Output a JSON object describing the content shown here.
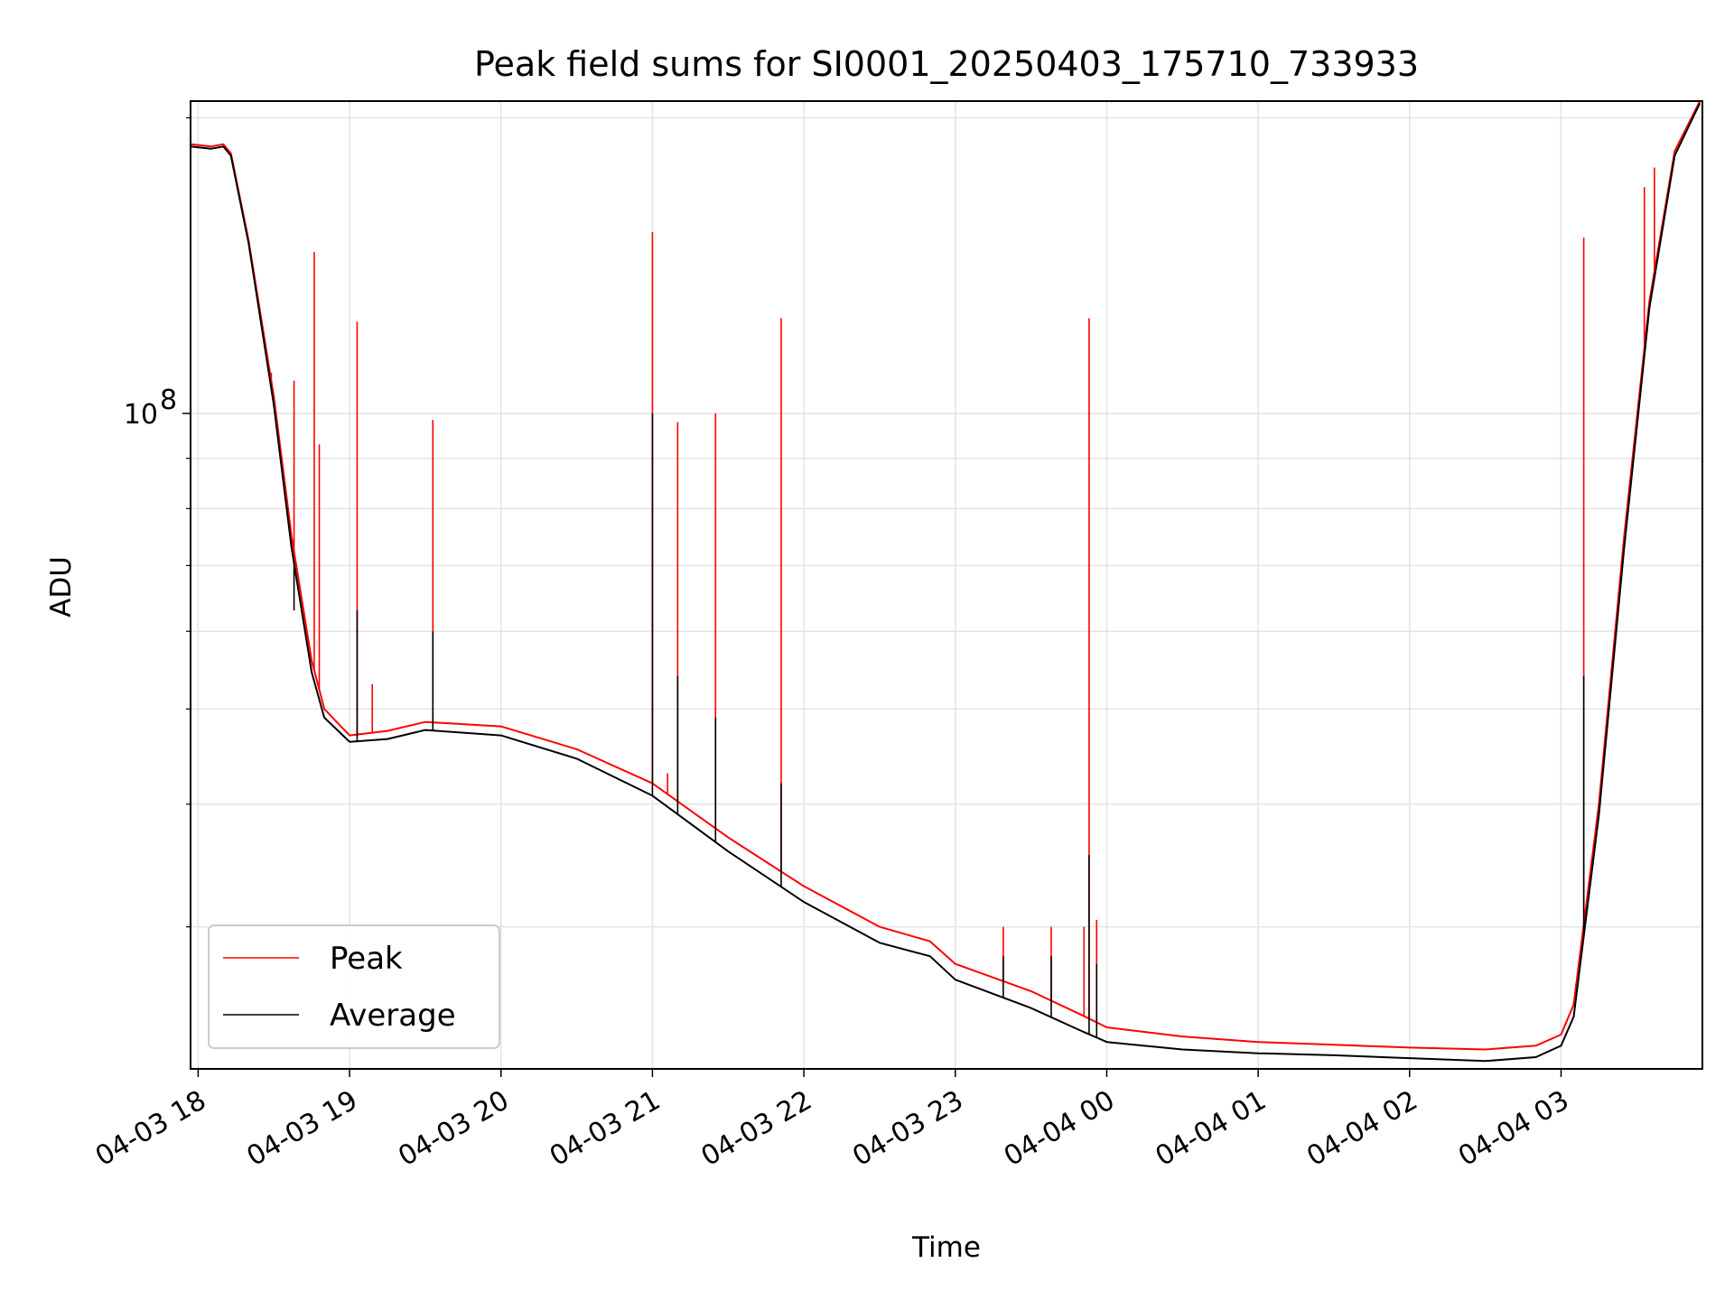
{
  "chart_data": {
    "type": "line",
    "title": "Peak field sums for SI0001_20250403_175710_733933",
    "xlabel": "Time",
    "ylabel": "ADU",
    "y_scale": "log",
    "ylim": [
      21500000,
      208000000
    ],
    "xlim": [
      "2025-04-03 17:57",
      "2025-04-04 03:56"
    ],
    "x_ticks": [
      {
        "t": "2025-04-03 18:00",
        "label": "04-03 18"
      },
      {
        "t": "2025-04-03 19:00",
        "label": "04-03 19"
      },
      {
        "t": "2025-04-03 20:00",
        "label": "04-03 20"
      },
      {
        "t": "2025-04-03 21:00",
        "label": "04-03 21"
      },
      {
        "t": "2025-04-03 22:00",
        "label": "04-03 22"
      },
      {
        "t": "2025-04-03 23:00",
        "label": "04-03 23"
      },
      {
        "t": "2025-04-04 00:00",
        "label": "04-04 00"
      },
      {
        "t": "2025-04-04 01:00",
        "label": "04-04 01"
      },
      {
        "t": "2025-04-04 02:00",
        "label": "04-04 02"
      },
      {
        "t": "2025-04-04 03:00",
        "label": "04-04 03"
      }
    ],
    "y_ticks": [
      {
        "value": 100000000,
        "label": "10",
        "exponent": "8"
      }
    ],
    "y_minor_ticks": [
      30000000,
      40000000,
      50000000,
      60000000,
      70000000,
      80000000,
      90000000,
      200000000
    ],
    "grid": true,
    "legend_position": "lower-left",
    "series": [
      {
        "name": "Peak",
        "color": "#ff0000",
        "x": [
          "2025-04-03 17:57",
          "2025-04-03 18:05",
          "2025-04-03 18:10",
          "2025-04-03 18:13",
          "2025-04-03 18:20",
          "2025-04-03 18:30",
          "2025-04-03 18:37",
          "2025-04-03 18:45",
          "2025-04-03 18:50",
          "2025-04-03 19:00",
          "2025-04-03 19:15",
          "2025-04-03 19:30",
          "2025-04-03 20:00",
          "2025-04-03 20:30",
          "2025-04-03 21:00",
          "2025-04-03 21:30",
          "2025-04-03 22:00",
          "2025-04-03 22:30",
          "2025-04-03 22:50",
          "2025-04-03 23:00",
          "2025-04-03 23:30",
          "2025-04-03 23:50",
          "2025-04-04 00:00",
          "2025-04-04 00:30",
          "2025-04-04 01:00",
          "2025-04-04 01:30",
          "2025-04-04 02:00",
          "2025-04-04 02:30",
          "2025-04-04 02:50",
          "2025-04-04 03:00",
          "2025-04-04 03:05",
          "2025-04-04 03:15",
          "2025-04-04 03:25",
          "2025-04-04 03:35",
          "2025-04-04 03:45",
          "2025-04-04 03:55"
        ],
        "y": [
          188000000,
          187000000,
          188000000,
          184000000,
          150000000,
          104000000,
          75000000,
          56000000,
          50000000,
          47000000,
          47500000,
          48500000,
          48000000,
          45500000,
          42000000,
          37000000,
          33000000,
          30000000,
          29000000,
          27500000,
          25800000,
          24400000,
          23700000,
          23200000,
          22900000,
          22750000,
          22600000,
          22500000,
          22700000,
          23300000,
          25000000,
          40000000,
          75000000,
          130000000,
          185000000,
          208000000
        ],
        "spikes": [
          {
            "t": "2025-04-03 18:29",
            "peak": 110000000
          },
          {
            "t": "2025-04-03 18:38",
            "peak": 108000000
          },
          {
            "t": "2025-04-03 18:46",
            "peak": 146000000
          },
          {
            "t": "2025-04-03 18:48",
            "peak": 93000000
          },
          {
            "t": "2025-04-03 19:03",
            "peak": 124000000
          },
          {
            "t": "2025-04-03 19:09",
            "peak": 53000000
          },
          {
            "t": "2025-04-03 19:33",
            "peak": 98500000
          },
          {
            "t": "2025-04-03 21:00",
            "peak": 153000000
          },
          {
            "t": "2025-04-03 21:06",
            "peak": 43000000
          },
          {
            "t": "2025-04-03 21:10",
            "peak": 98000000
          },
          {
            "t": "2025-04-03 21:25",
            "peak": 100000000
          },
          {
            "t": "2025-04-03 21:51",
            "peak": 125000000
          },
          {
            "t": "2025-04-03 23:19",
            "peak": 30000000
          },
          {
            "t": "2025-04-03 23:38",
            "peak": 30000000
          },
          {
            "t": "2025-04-03 23:51",
            "peak": 30000000
          },
          {
            "t": "2025-04-03 23:53",
            "peak": 125000000
          },
          {
            "t": "2025-04-03 23:56",
            "peak": 30500000
          },
          {
            "t": "2025-04-04 03:09",
            "peak": 151000000
          },
          {
            "t": "2025-04-04 03:33",
            "peak": 170000000
          },
          {
            "t": "2025-04-04 03:37",
            "peak": 178000000
          }
        ]
      },
      {
        "name": "Average",
        "color": "#000000",
        "x": [
          "2025-04-03 17:57",
          "2025-04-03 18:05",
          "2025-04-03 18:10",
          "2025-04-03 18:13",
          "2025-04-03 18:20",
          "2025-04-03 18:30",
          "2025-04-03 18:37",
          "2025-04-03 18:45",
          "2025-04-03 18:50",
          "2025-04-03 19:00",
          "2025-04-03 19:15",
          "2025-04-03 19:30",
          "2025-04-03 20:00",
          "2025-04-03 20:30",
          "2025-04-03 21:00",
          "2025-04-03 21:30",
          "2025-04-03 22:00",
          "2025-04-03 22:30",
          "2025-04-03 22:50",
          "2025-04-03 23:00",
          "2025-04-03 23:30",
          "2025-04-03 23:50",
          "2025-04-04 00:00",
          "2025-04-04 00:30",
          "2025-04-04 01:00",
          "2025-04-04 01:30",
          "2025-04-04 02:00",
          "2025-04-04 02:30",
          "2025-04-04 02:50",
          "2025-04-04 03:00",
          "2025-04-04 03:05",
          "2025-04-04 03:15",
          "2025-04-04 03:25",
          "2025-04-04 03:35",
          "2025-04-04 03:45",
          "2025-04-04 03:55"
        ],
        "y": [
          187000000,
          186000000,
          187000000,
          183000000,
          149000000,
          102000000,
          73000000,
          54500000,
          49000000,
          46300000,
          46600000,
          47600000,
          47000000,
          44500000,
          40800000,
          35800000,
          31800000,
          28900000,
          28000000,
          26500000,
          24800000,
          23500000,
          22900000,
          22500000,
          22300000,
          22200000,
          22050000,
          21900000,
          22100000,
          22700000,
          24300000,
          39000000,
          73000000,
          128000000,
          183000000,
          207000000
        ],
        "spikes": [
          {
            "t": "2025-04-03 18:38",
            "peak": 63000000
          },
          {
            "t": "2025-04-03 19:03",
            "peak": 63000000
          },
          {
            "t": "2025-04-03 19:33",
            "peak": 60000000
          },
          {
            "t": "2025-04-03 21:00",
            "peak": 100000000
          },
          {
            "t": "2025-04-03 21:10",
            "peak": 54000000
          },
          {
            "t": "2025-04-03 21:25",
            "peak": 49000000
          },
          {
            "t": "2025-04-03 21:51",
            "peak": 42000000
          },
          {
            "t": "2025-04-03 23:19",
            "peak": 28000000
          },
          {
            "t": "2025-04-03 23:38",
            "peak": 28000000
          },
          {
            "t": "2025-04-03 23:53",
            "peak": 35500000
          },
          {
            "t": "2025-04-03 23:56",
            "peak": 27500000
          },
          {
            "t": "2025-04-04 03:09",
            "peak": 54000000
          }
        ]
      }
    ]
  }
}
